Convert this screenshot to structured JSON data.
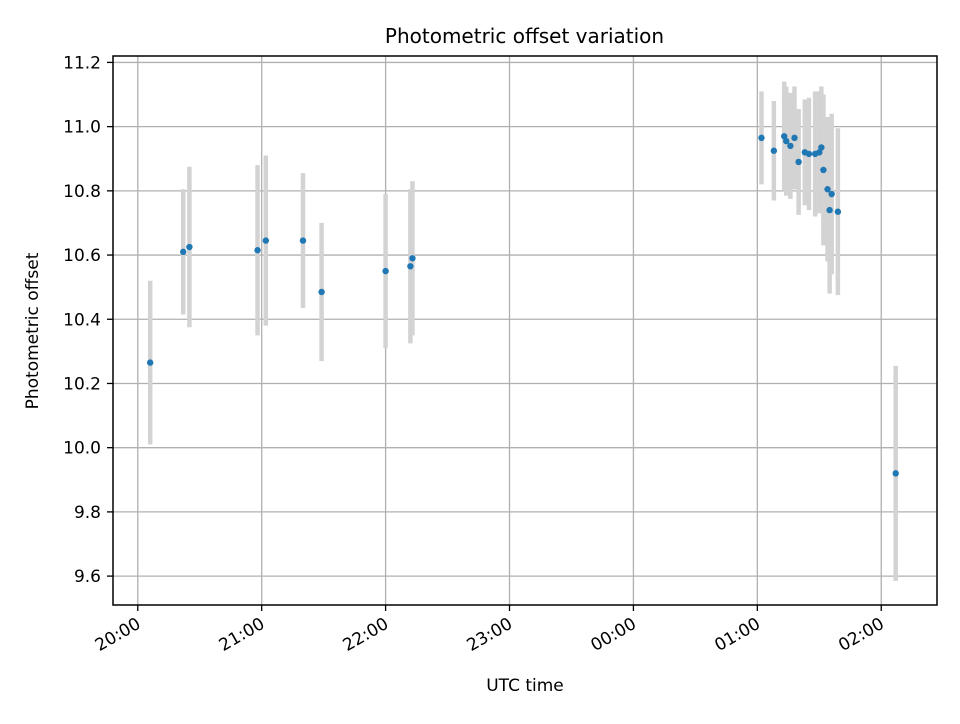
{
  "chart_data": {
    "type": "scatter",
    "title": "Photometric offset variation",
    "xlabel": "UTC time",
    "ylabel": "Photometric offset",
    "grid": true,
    "xlim": [
      "19:48",
      "26:27"
    ],
    "ylim": [
      9.51,
      11.22
    ],
    "xtick_values": [
      "20:00",
      "21:00",
      "22:00",
      "23:00",
      "24:00",
      "25:00",
      "26:00"
    ],
    "xtick_labels": [
      "20:00",
      "21:00",
      "22:00",
      "23:00",
      "00:00",
      "01:00",
      "02:00"
    ],
    "yticks": [
      9.6,
      9.8,
      10.0,
      10.2,
      10.4,
      10.6,
      10.8,
      11.0,
      11.2
    ],
    "ytick_labels": [
      "9.6",
      "9.8",
      "10.0",
      "10.2",
      "10.4",
      "10.6",
      "10.8",
      "11.0",
      "11.2"
    ],
    "colors": {
      "marker": "#1f77b4",
      "errorbar": "#d3d3d3",
      "grid": "#b0b0b0"
    },
    "series": [
      {
        "x": [
          "20:06",
          "20:22",
          "20:25",
          "20:58",
          "21:02",
          "21:20",
          "21:29",
          "22:00",
          "22:12",
          "22:13",
          "25:02",
          "25:08",
          "25:13",
          "25:14",
          "25:16",
          "25:18",
          "25:20",
          "25:23",
          "25:25",
          "25:28",
          "25:30",
          "25:31",
          "25:32",
          "25:34",
          "25:35",
          "25:36",
          "25:39",
          "26:07"
        ],
        "y": [
          10.265,
          10.61,
          10.625,
          10.615,
          10.645,
          10.645,
          10.485,
          10.55,
          10.565,
          10.59,
          10.965,
          10.925,
          10.97,
          10.955,
          10.94,
          10.965,
          10.89,
          10.92,
          10.915,
          10.915,
          10.92,
          10.935,
          10.865,
          10.805,
          10.74,
          10.79,
          10.735,
          9.92
        ],
        "yerr": [
          0.255,
          0.195,
          0.25,
          0.265,
          0.265,
          0.21,
          0.215,
          0.24,
          0.24,
          0.24,
          0.145,
          0.155,
          0.17,
          0.17,
          0.165,
          0.16,
          0.165,
          0.165,
          0.175,
          0.195,
          0.19,
          0.19,
          0.235,
          0.225,
          0.26,
          0.25,
          0.26,
          0.335
        ]
      }
    ]
  }
}
